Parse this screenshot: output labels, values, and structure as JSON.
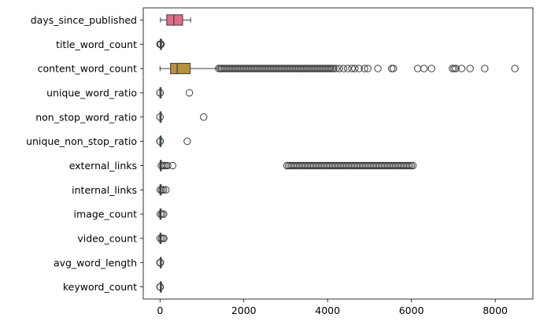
{
  "chart_data": {
    "type": "boxplot",
    "orientation": "horizontal",
    "xlim": [
      -400,
      8900
    ],
    "x_ticks": [
      0,
      2000,
      4000,
      6000,
      8000
    ],
    "x_tick_labels": [
      "0",
      "2000",
      "4000",
      "6000",
      "8000"
    ],
    "xlabel": "",
    "ylabel": "",
    "grid": false,
    "series": [
      {
        "name": "days_since_published",
        "color": "#e16c85",
        "min": 10,
        "q1": 160,
        "median": 330,
        "q3": 540,
        "max": 730,
        "outliers": [],
        "dense_outliers": []
      },
      {
        "name": "title_word_count",
        "color": "#e5835b",
        "min": 2,
        "q1": 9,
        "median": 10,
        "q3": 12,
        "max": 17,
        "outliers": [
          0,
          20,
          23
        ],
        "dense_outliers": []
      },
      {
        "name": "content_word_count",
        "color": "#b59040",
        "min": 0,
        "q1": 250,
        "median": 410,
        "q3": 720,
        "max": 1400,
        "outliers": [
          4200,
          4280,
          4380,
          4480,
          4580,
          4650,
          4750,
          4880,
          4960,
          5200,
          5530,
          5570,
          6150,
          6300,
          6480,
          6980,
          7020,
          7060,
          7200,
          7400,
          7750,
          8470
        ],
        "dense_outliers": [
          [
            1400,
            4150
          ]
        ]
      },
      {
        "name": "unique_word_ratio",
        "color": "#93a33f",
        "min": 0.4,
        "q1": 0.47,
        "median": 0.54,
        "q3": 0.6,
        "max": 0.7,
        "outliers": [
          0,
          1,
          701
        ],
        "dense_outliers": []
      },
      {
        "name": "non_stop_word_ratio",
        "color": "#52ad4f",
        "min": 1,
        "q1": 1,
        "median": 1,
        "q3": 1,
        "max": 1,
        "outliers": [
          0,
          1042
        ],
        "dense_outliers": []
      },
      {
        "name": "unique_non_stop_ratio",
        "color": "#3fab84",
        "min": 0.57,
        "q1": 0.63,
        "median": 0.69,
        "q3": 0.75,
        "max": 0.85,
        "outliers": [
          0,
          1,
          650
        ],
        "dense_outliers": []
      },
      {
        "name": "external_links",
        "color": "#3fa6a0",
        "min": 0,
        "q1": 4,
        "median": 8,
        "q3": 14,
        "max": 30,
        "outliers": [
          300
        ],
        "dense_outliers": [
          [
            30,
            190
          ],
          [
            3030,
            6070
          ]
        ]
      },
      {
        "name": "internal_links",
        "color": "#42a5c1",
        "min": 0,
        "q1": 1,
        "median": 3,
        "q3": 4,
        "max": 8,
        "outliers": [
          140
        ],
        "dense_outliers": [
          [
            8,
            110
          ]
        ]
      },
      {
        "name": "image_count",
        "color": "#5fa3e4",
        "min": 0,
        "q1": 1,
        "median": 1,
        "q3": 4,
        "max": 10,
        "outliers": [],
        "dense_outliers": [
          [
            10,
            120
          ]
        ]
      },
      {
        "name": "video_count",
        "color": "#ae8ff1",
        "min": 0,
        "q1": 0,
        "median": 0,
        "q3": 1,
        "max": 2,
        "outliers": [
          90
        ],
        "dense_outliers": [
          [
            2,
            85
          ]
        ]
      },
      {
        "name": "avg_word_length",
        "color": "#df73e3",
        "min": 4.2,
        "q1": 4.5,
        "median": 4.7,
        "q3": 4.8,
        "max": 5.2,
        "outliers": [
          0,
          8
        ],
        "dense_outliers": [
          [
            0,
            12
          ]
        ]
      },
      {
        "name": "keyword_count",
        "color": "#e96cb8",
        "min": 4,
        "q1": 6,
        "median": 7,
        "q3": 9,
        "max": 10,
        "outliers": [
          1,
          2,
          3
        ],
        "dense_outliers": []
      }
    ]
  }
}
